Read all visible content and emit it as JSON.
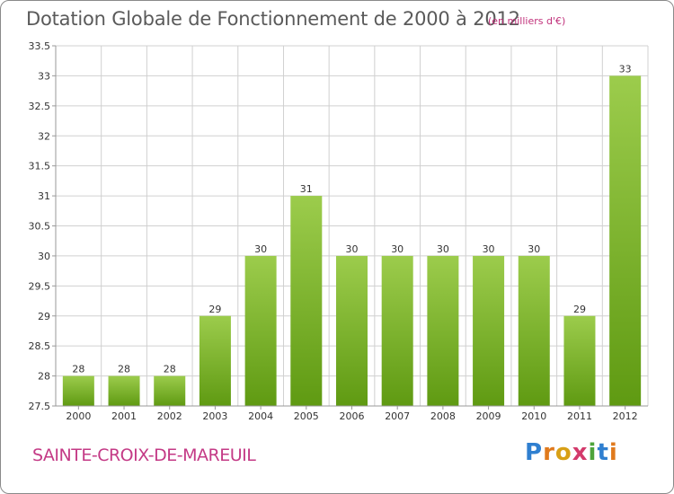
{
  "header": {
    "title": "Dotation Globale de Fonctionnement de 2000 à 2012",
    "unit": "(en milliers d'€)"
  },
  "footer": {
    "commune": "SAINTE-CROIX-DE-MAREUIL",
    "logo": [
      "P",
      "r",
      "o",
      "x",
      "i",
      "t",
      "i"
    ]
  },
  "colors": {
    "bar_top": "#9ccc4c",
    "bar_bottom": "#5f9a12",
    "grid": "#d0d0d0",
    "axis": "#999999"
  },
  "chart_data": {
    "type": "bar",
    "title": "Dotation Globale de Fonctionnement de 2000 à 2012",
    "ylabel": "(en milliers d'€)",
    "xlabel": "",
    "categories": [
      "2000",
      "2001",
      "2002",
      "2003",
      "2004",
      "2005",
      "2006",
      "2007",
      "2008",
      "2009",
      "2010",
      "2011",
      "2012"
    ],
    "values": [
      28,
      28,
      28,
      29,
      30,
      31,
      30,
      30,
      30,
      30,
      30,
      29,
      33
    ],
    "ylim": [
      27.5,
      33.5
    ],
    "yticks": [
      27.5,
      28,
      28.5,
      29,
      29.5,
      30,
      30.5,
      31,
      31.5,
      32,
      32.5,
      33,
      33.5
    ],
    "grid": true
  }
}
